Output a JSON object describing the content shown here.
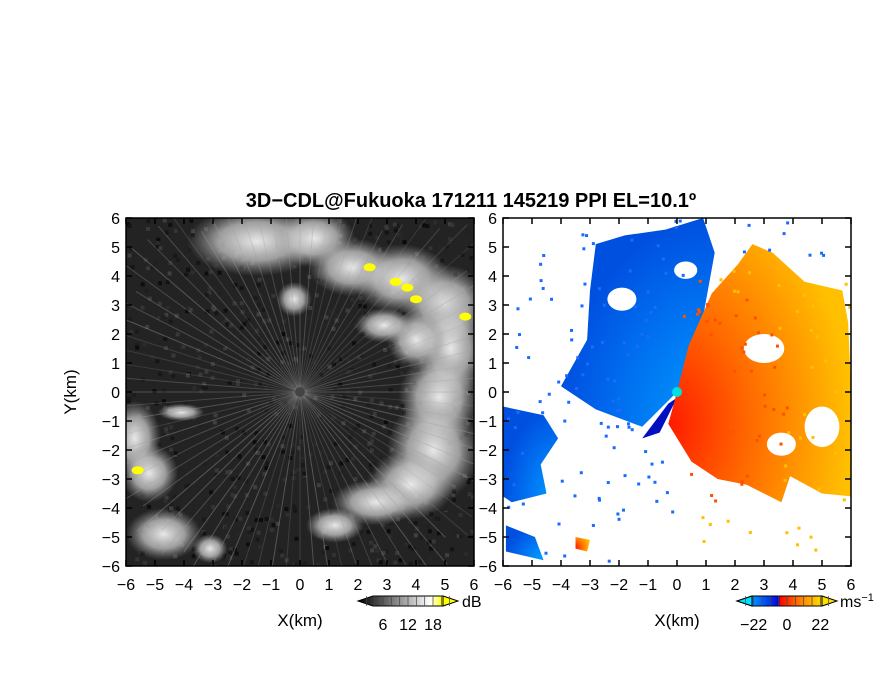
{
  "title": "3D−CDL@Fukuoka 171211 145219 PPI EL=10.1º",
  "chart_data": [
    {
      "type": "heatmap",
      "name": "reflectivity-panel",
      "xlabel": "X(km)",
      "ylabel": "Y(km)",
      "xlim": [
        -6,
        6
      ],
      "ylim": [
        -6,
        6
      ],
      "xticks": [
        "−6",
        "−5",
        "−4",
        "−3",
        "−2",
        "−1",
        "0",
        "1",
        "2",
        "3",
        "4",
        "5",
        "6"
      ],
      "yticks": [
        "−6",
        "−5",
        "−4",
        "−3",
        "−2",
        "−1",
        "0",
        "1",
        "2",
        "3",
        "4",
        "5",
        "6"
      ],
      "colorbar": {
        "unit": "dB",
        "ticks": [
          "6",
          "12",
          "18"
        ],
        "tick_values": [
          6,
          12,
          18
        ],
        "range": [
          0,
          24
        ],
        "colors": [
          "#000000",
          "#ffffff",
          "#ffff00"
        ]
      },
      "radar_center": [
        0,
        0
      ],
      "high_echo_spots": [
        [
          3.3,
          3.8
        ],
        [
          3.7,
          3.6
        ],
        [
          4.0,
          3.2
        ],
        [
          5.7,
          2.6
        ],
        [
          -5.6,
          -2.7
        ],
        [
          2.4,
          4.3
        ]
      ]
    },
    {
      "type": "heatmap",
      "name": "velocity-panel",
      "xlabel": "X(km)",
      "xlim": [
        -6,
        6
      ],
      "ylim": [
        -6,
        6
      ],
      "xticks": [
        "−6",
        "−5",
        "−4",
        "−3",
        "−2",
        "−1",
        "0",
        "1",
        "2",
        "3",
        "4",
        "5",
        "6"
      ],
      "yticks": [
        "−6",
        "−5",
        "−4",
        "−3",
        "−2",
        "−1",
        "0",
        "1",
        "2",
        "3",
        "4",
        "5",
        "6"
      ],
      "colorbar": {
        "unit": "ms",
        "unit_exp": "−1",
        "ticks": [
          "−22",
          "0",
          "22"
        ],
        "tick_values": [
          -22,
          0,
          22
        ],
        "range": [
          -33,
          33
        ],
        "colors": [
          "#00e0ff",
          "#0060ff",
          "#0000d0",
          "#ff0000",
          "#ff8000",
          "#ffe000"
        ]
      },
      "radar_center": [
        0,
        0
      ]
    }
  ]
}
